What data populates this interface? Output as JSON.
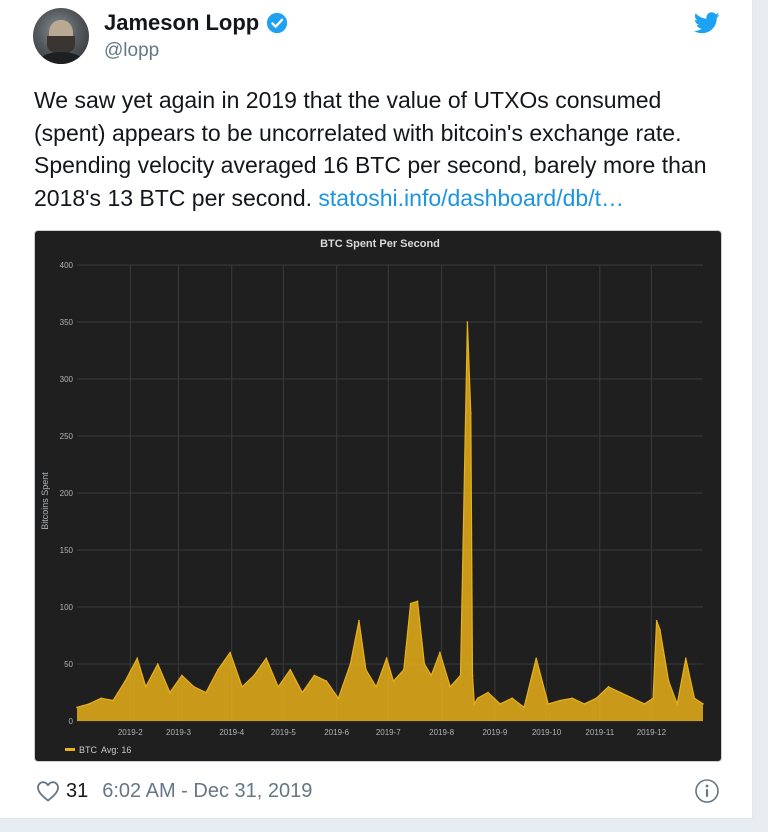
{
  "author": {
    "name": "Jameson Lopp",
    "handle": "@lopp"
  },
  "icons": {
    "avatar": "avatar-photo",
    "verified": "verified-badge-icon",
    "brand": "twitter-bird-icon",
    "like": "heart-icon",
    "info": "info-icon"
  },
  "colors": {
    "text": "#14171a",
    "muted": "#657786",
    "link": "#1b95e0",
    "brand": "#1da1f2",
    "chart_bg": "#1f1f20",
    "series": "#e8b01a"
  },
  "tweet": {
    "text": "We saw yet again in 2019 that the value of UTXOs consumed (spent) appears to be uncorrelated with bitcoin's exchange rate. Spending velocity averaged 16 BTC per second, barely more than 2018's 13 BTC per second. ",
    "link_text": "statoshi.info/dashboard/db/t…"
  },
  "footer": {
    "likes": "31",
    "timestamp": "6:02 AM - Dec 31, 2019"
  },
  "chart_data": {
    "type": "area",
    "title": "BTC Spent Per Second",
    "ylabel": "Bitcoins Spent",
    "xlabel": "",
    "ylim": [
      0,
      400
    ],
    "yticks": [
      0,
      50,
      100,
      150,
      200,
      250,
      300,
      350,
      400
    ],
    "xlim": [
      "2019-01-01",
      "2019-12-31"
    ],
    "xticks": [
      "2019-2",
      "2019-3",
      "2019-4",
      "2019-5",
      "2019-6",
      "2019-7",
      "2019-8",
      "2019-9",
      "2019-10",
      "2019-11",
      "2019-12"
    ],
    "grid": true,
    "legend": {
      "placement": "bottom-left",
      "entries": [
        {
          "name": "BTC",
          "stat": "Avg: 16"
        }
      ]
    },
    "series": [
      {
        "name": "BTC",
        "color": "#e8b01a",
        "x": [
          "2019-01-01",
          "2019-01-08",
          "2019-01-15",
          "2019-01-22",
          "2019-01-29",
          "2019-02-05",
          "2019-02-10",
          "2019-02-17",
          "2019-02-24",
          "2019-03-03",
          "2019-03-10",
          "2019-03-17",
          "2019-03-24",
          "2019-03-31",
          "2019-04-07",
          "2019-04-14",
          "2019-04-21",
          "2019-04-28",
          "2019-05-05",
          "2019-05-12",
          "2019-05-19",
          "2019-05-26",
          "2019-06-02",
          "2019-06-09",
          "2019-06-14",
          "2019-06-18",
          "2019-06-24",
          "2019-06-30",
          "2019-07-04",
          "2019-07-10",
          "2019-07-14",
          "2019-07-18",
          "2019-07-22",
          "2019-07-26",
          "2019-07-31",
          "2019-08-06",
          "2019-08-12",
          "2019-08-16",
          "2019-08-18",
          "2019-08-19",
          "2019-08-20",
          "2019-08-22",
          "2019-08-28",
          "2019-09-04",
          "2019-09-11",
          "2019-09-18",
          "2019-09-25",
          "2019-10-02",
          "2019-10-09",
          "2019-10-16",
          "2019-10-23",
          "2019-10-30",
          "2019-11-06",
          "2019-11-13",
          "2019-11-20",
          "2019-11-27",
          "2019-12-02",
          "2019-12-04",
          "2019-12-06",
          "2019-12-11",
          "2019-12-16",
          "2019-12-21",
          "2019-12-26",
          "2019-12-31"
        ],
        "values": [
          12,
          15,
          20,
          18,
          35,
          55,
          30,
          50,
          25,
          40,
          30,
          25,
          45,
          60,
          30,
          40,
          55,
          30,
          45,
          25,
          40,
          35,
          20,
          50,
          88,
          45,
          30,
          55,
          35,
          45,
          103,
          105,
          50,
          40,
          60,
          30,
          40,
          350,
          270,
          40,
          15,
          20,
          25,
          15,
          20,
          12,
          55,
          15,
          18,
          20,
          15,
          20,
          30,
          25,
          20,
          15,
          20,
          88,
          80,
          35,
          15,
          55,
          20,
          15
        ]
      }
    ]
  }
}
